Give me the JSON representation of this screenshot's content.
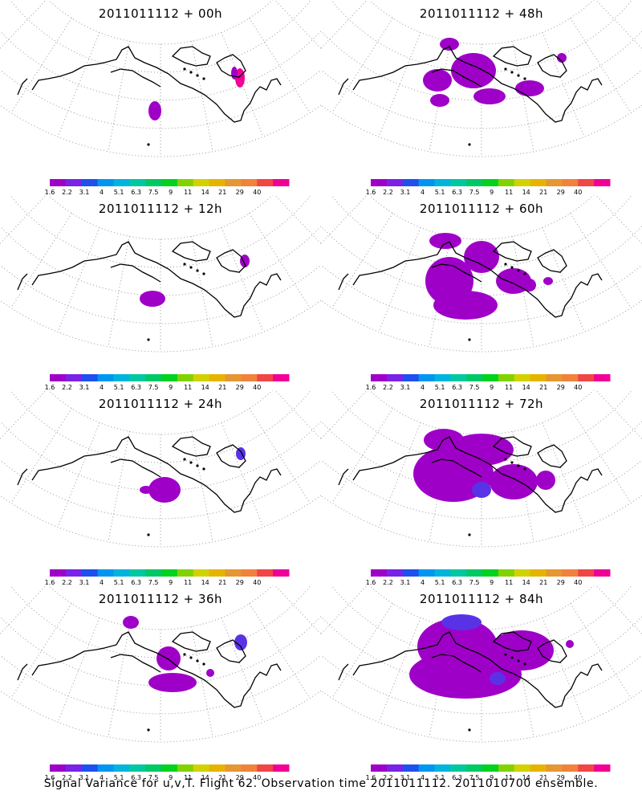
{
  "colorbar": {
    "colors": [
      "#9f00c8",
      "#7a22e6",
      "#1e50f0",
      "#0096f0",
      "#00b4dc",
      "#00c8a0",
      "#00c864",
      "#00d21e",
      "#82d200",
      "#d2d200",
      "#e6b400",
      "#e69632",
      "#f0823c",
      "#f04646",
      "#f00096"
    ],
    "labels": [
      "1.6",
      "2.2",
      "3.1",
      "4",
      "5.1",
      "6.3",
      "7.5",
      "9",
      "11",
      "14",
      "21",
      "29",
      "40"
    ]
  },
  "panels": [
    {
      "title": "2011011112 + 00h"
    },
    {
      "title": "2011011112 + 48h"
    },
    {
      "title": "2011011112 + 12h"
    },
    {
      "title": "2011011112 + 60h"
    },
    {
      "title": "2011011112 + 24h"
    },
    {
      "title": "2011011112 + 72h"
    },
    {
      "title": "2011011112 + 36h"
    },
    {
      "title": "2011011112 + 84h"
    }
  ],
  "footer": "Signal Variance for u,v,T. Flight 62. Observation time 2011011112. 2011010700 ensemble.",
  "colors": {
    "purple": "#9f00c8",
    "blue": "#5a32e6",
    "magenta": "#f00096"
  }
}
